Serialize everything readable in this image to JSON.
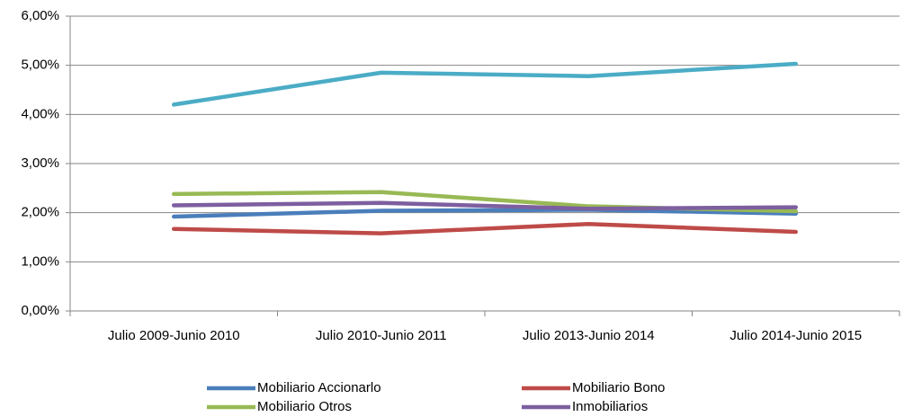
{
  "chart_data": {
    "type": "line",
    "categories": [
      "Julio 2009-Junio 2010",
      "Julio 2010-Junio 2011",
      "Julio 2013-Junio 2014",
      "Julio 2014-Junio 2015"
    ],
    "series": [
      {
        "name": "Mobiliario Accionarlo",
        "color": "#4a7ebb",
        "values": [
          1.92,
          2.04,
          2.06,
          1.98
        ]
      },
      {
        "name": "Mobiliario Bono",
        "color": "#be4b48",
        "values": [
          1.67,
          1.58,
          1.77,
          1.61
        ]
      },
      {
        "name": "Mobiliario Otros",
        "color": "#98b954",
        "values": [
          2.38,
          2.42,
          2.13,
          2.03
        ]
      },
      {
        "name": "Inmobiliarios",
        "color": "#7d5fa0",
        "values": [
          2.15,
          2.2,
          2.08,
          2.11
        ]
      },
      {
        "color": "#4bacc6",
        "values": [
          4.2,
          4.85,
          4.78,
          5.03
        ]
      }
    ],
    "ylim": [
      0,
      6
    ],
    "yticks": [
      {
        "value": 0,
        "label": "0,00%"
      },
      {
        "value": 1,
        "label": "1,00%"
      },
      {
        "value": 2,
        "label": "2,00%"
      },
      {
        "value": 3,
        "label": "3,00%"
      },
      {
        "value": 4,
        "label": "4,00%"
      },
      {
        "value": 5,
        "label": "5,00%"
      },
      {
        "value": 6,
        "label": "6,00%"
      }
    ],
    "grid": true,
    "legend": "bottom"
  }
}
